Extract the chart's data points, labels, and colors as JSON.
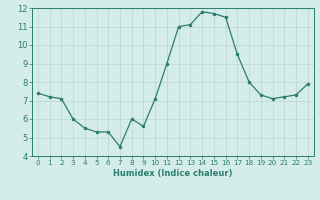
{
  "x": [
    0,
    1,
    2,
    3,
    4,
    5,
    6,
    7,
    8,
    9,
    10,
    11,
    12,
    13,
    14,
    15,
    16,
    17,
    18,
    19,
    20,
    21,
    22,
    23
  ],
  "y": [
    7.4,
    7.2,
    7.1,
    6.0,
    5.5,
    5.3,
    5.3,
    4.5,
    6.0,
    5.6,
    7.1,
    9.0,
    11.0,
    11.1,
    11.8,
    11.7,
    11.5,
    9.5,
    8.0,
    7.3,
    7.1,
    7.2,
    7.3,
    7.9
  ],
  "xlabel": "Humidex (Indice chaleur)",
  "ylim": [
    4,
    12
  ],
  "xlim_min": -0.5,
  "xlim_max": 23.5,
  "yticks": [
    4,
    5,
    6,
    7,
    8,
    9,
    10,
    11,
    12
  ],
  "xticks": [
    0,
    1,
    2,
    3,
    4,
    5,
    6,
    7,
    8,
    9,
    10,
    11,
    12,
    13,
    14,
    15,
    16,
    17,
    18,
    19,
    20,
    21,
    22,
    23
  ],
  "line_color": "#2d7d6e",
  "marker_color": "#2d7d6e",
  "bg_color": "#d4ecea",
  "grid_color": "#c0d8d6",
  "tick_color": "#2d7d6e",
  "spine_color": "#2d7d6e",
  "xlabel_fontsize": 6.0,
  "tick_fontsize_x": 5.2,
  "tick_fontsize_y": 6.0
}
